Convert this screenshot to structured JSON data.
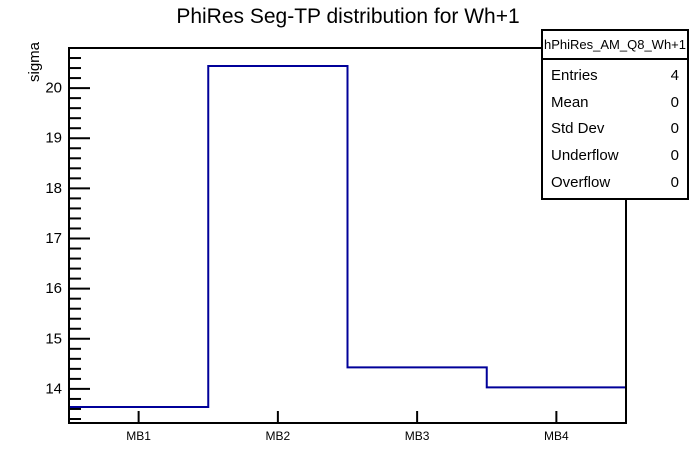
{
  "title": "PhiRes Seg-TP distribution for Wh+1",
  "y_axis_title": "sigma",
  "stats": {
    "header": "hPhiRes_AM_Q8_Wh+1",
    "rows": [
      {
        "label": "Entries",
        "value": "4"
      },
      {
        "label": "Mean",
        "value": "0"
      },
      {
        "label": "Std Dev",
        "value": "0"
      },
      {
        "label": "Underflow",
        "value": "0"
      },
      {
        "label": "Overflow",
        "value": "0"
      }
    ]
  },
  "colors": {
    "hist_line": "#000099",
    "frame": "#000000",
    "background": "#ffffff"
  },
  "chart_data": {
    "type": "bar",
    "subtype": "step-histogram-outline",
    "title": "PhiRes Seg-TP distribution for Wh+1",
    "xlabel": "",
    "ylabel": "sigma",
    "categories": [
      "MB1",
      "MB2",
      "MB3",
      "MB4"
    ],
    "values": [
      13.64,
      20.44,
      14.43,
      14.03
    ],
    "ylim": [
      13.32,
      20.8
    ],
    "yticks_major": [
      14,
      15,
      16,
      17,
      18,
      19,
      20
    ],
    "minor_step": 0.2,
    "grid": false,
    "legend": false,
    "stats_box": {
      "name": "hPhiRes_AM_Q8_Wh+1",
      "entries": 4,
      "mean": 0,
      "std_dev": 0,
      "underflow": 0,
      "overflow": 0
    }
  }
}
